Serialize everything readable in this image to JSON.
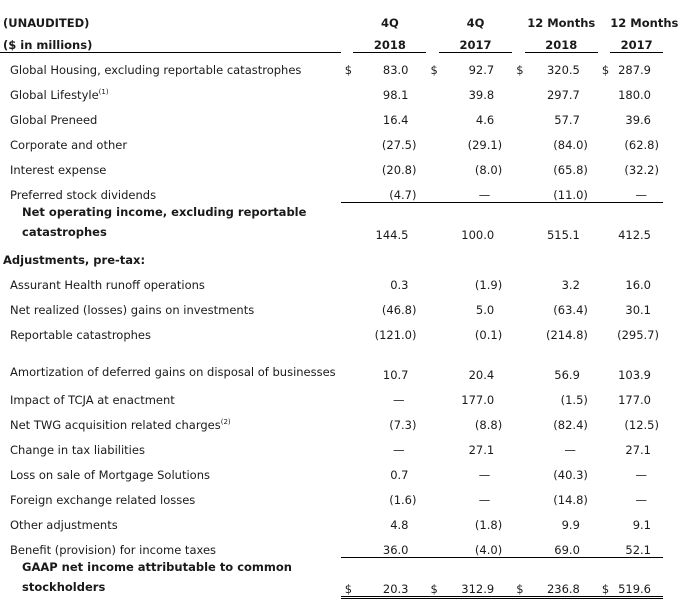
{
  "header": {
    "row1": {
      "label": "(UNAUDITED)",
      "c1": "4Q",
      "c2": "4Q",
      "c3": "12 Months",
      "c4": "12 Months"
    },
    "row2": {
      "label": "($ in millions)",
      "c1": "2018",
      "c2": "2017",
      "c3": "2018",
      "c4": "2017"
    }
  },
  "rows": [
    {
      "label": "Global Housing, excluding reportable catastrophes",
      "note": "",
      "v": [
        "83.0",
        "92.7",
        "320.5",
        "287.9"
      ],
      "dollar": "$"
    },
    {
      "label": "Global Lifestyle",
      "note": "(1)",
      "v": [
        "98.1",
        "39.8",
        "297.7",
        "180.0"
      ]
    },
    {
      "label": "Global Preneed",
      "note": "",
      "v": [
        "16.4",
        "4.6",
        "57.7",
        "39.6"
      ]
    },
    {
      "label": "Corporate and other",
      "note": "",
      "v": [
        "(27.5)",
        "(29.1)",
        "(84.0)",
        "(62.8)"
      ]
    },
    {
      "label": "Interest expense",
      "note": "",
      "v": [
        "(20.8)",
        "(8.0)",
        "(65.8)",
        "(32.2)"
      ]
    },
    {
      "label": "Preferred stock dividends",
      "note": "",
      "v": [
        "(4.7)",
        "—",
        "(11.0)",
        "—"
      ]
    }
  ],
  "subtotal": {
    "label": "Net operating income, excluding reportable catastrophes",
    "v": [
      "144.5",
      "100.0",
      "515.1",
      "412.5"
    ]
  },
  "adjustments_heading": "Adjustments, pre-tax:",
  "adjustments": [
    {
      "label": "Assurant Health runoff operations",
      "note": "",
      "v": [
        "0.3",
        "(1.9)",
        "3.2",
        "16.0"
      ]
    },
    {
      "label": "Net realized (losses) gains on investments",
      "note": "",
      "v": [
        "(46.8)",
        "5.0",
        "(63.4)",
        "30.1"
      ]
    },
    {
      "label": "Reportable catastrophes",
      "note": "",
      "v": [
        "(121.0)",
        "(0.1)",
        "(214.8)",
        "(295.7)"
      ]
    },
    {
      "label": "Amortization of deferred gains on disposal of businesses",
      "note": "",
      "v": [
        "10.7",
        "20.4",
        "56.9",
        "103.9"
      ],
      "tall": true
    },
    {
      "label": "Impact of TCJA at enactment",
      "note": "",
      "v": [
        "—",
        "177.0",
        "(1.5)",
        "177.0"
      ]
    },
    {
      "label": "Net TWG acquisition related charges",
      "note": "(2)",
      "v": [
        "(7.3)",
        "(8.8)",
        "(82.4)",
        "(12.5)"
      ]
    },
    {
      "label": "Change in tax liabilities",
      "note": "",
      "v": [
        "—",
        "27.1",
        "—",
        "27.1"
      ]
    },
    {
      "label": "Loss on sale of Mortgage Solutions",
      "note": "",
      "v": [
        "0.7",
        "—",
        "(40.3)",
        "—"
      ]
    },
    {
      "label": "Foreign exchange related losses",
      "note": "",
      "v": [
        "(1.6)",
        "—",
        "(14.8)",
        "—"
      ]
    },
    {
      "label": "Other adjustments",
      "note": "",
      "v": [
        "4.8",
        "(1.8)",
        "9.9",
        "9.1"
      ]
    },
    {
      "label": "Benefit (provision) for income taxes",
      "note": "",
      "v": [
        "36.0",
        "(4.0)",
        "69.0",
        "52.1"
      ]
    }
  ],
  "total": {
    "label": "GAAP net income attributable to common stockholders",
    "v": [
      "20.3",
      "312.9",
      "236.8",
      "519.6"
    ],
    "dollar": "$"
  }
}
